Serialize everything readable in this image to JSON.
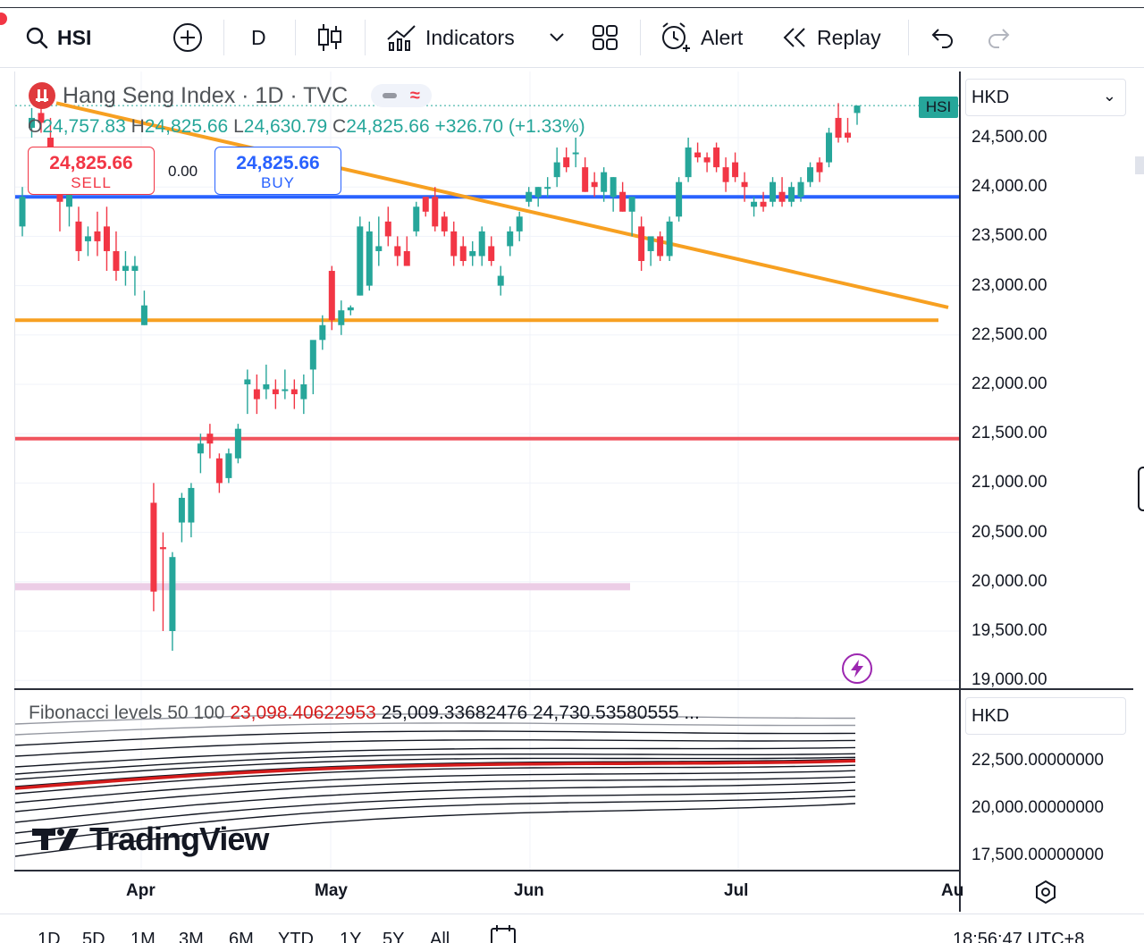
{
  "toolbar": {
    "symbol": "HSI",
    "interval": "D",
    "indicators_label": "Indicators",
    "alert_label": "Alert",
    "replay_label": "Replay",
    "icons": [
      "search-icon",
      "add-symbol-icon",
      "candles-icon",
      "indicators-icon",
      "chevron-down-icon",
      "layout-grid-icon",
      "alert-clock-icon",
      "replay-icon",
      "undo-icon",
      "redo-icon"
    ]
  },
  "legend": {
    "title": "Hang Seng Index · 1D · TVC",
    "o_label": "O",
    "o_value": "24,757.83",
    "h_label": "H",
    "h_value": "24,825.66",
    "l_label": "L",
    "l_value": "24,630.79",
    "c_label": "C",
    "c_value": "24,825.66",
    "change": "+326.70 (+1.33%)"
  },
  "trade": {
    "sell_price": "24,825.66",
    "sell_label": "SELL",
    "spread": "0.00",
    "buy_price": "24,825.66",
    "buy_label": "BUY"
  },
  "price_axis": {
    "currency": "HKD",
    "last_tag": "HSI",
    "ticks": [
      "24,500.00",
      "24,000.00",
      "23,500.00",
      "23,000.00",
      "22,500.00",
      "22,000.00",
      "21,500.00",
      "21,000.00",
      "20,500.00",
      "20,000.00",
      "19,500.00",
      "19,000.00"
    ]
  },
  "indicator": {
    "legend_name": "Fibonacci levels 50 100",
    "value_red": "23,098.40622953",
    "value_2": "25,009.33682476",
    "value_3": "24,730.53580555",
    "ellipsis": "...",
    "currency": "HKD",
    "ticks": [
      "22,500.00000000",
      "20,000.00000000",
      "17,500.00000000"
    ]
  },
  "time_axis": {
    "labels": [
      "Apr",
      "May",
      "Jun",
      "Jul",
      "Au"
    ]
  },
  "bottom": {
    "ranges": [
      "1D",
      "5D",
      "1M",
      "3M",
      "6M",
      "YTD",
      "1Y",
      "5Y",
      "All"
    ],
    "clock": "18:56:47 UTC+8"
  },
  "watermark": "TradingView",
  "colors": {
    "up": "#26a69a",
    "down": "#f23645",
    "trend_orange": "#f7a021",
    "support_blue": "#2962ff",
    "resistance_red": "#f0545e",
    "fib_red": "#d41b1b"
  },
  "chart_data": {
    "type": "candlestick",
    "currency": "HKD",
    "ylim": [
      19000,
      24900
    ],
    "candles": [
      {
        "o": 23600,
        "h": 24000,
        "l": 23500,
        "c": 23900
      },
      {
        "o": 24600,
        "h": 24800,
        "l": 24500,
        "c": 24700
      },
      {
        "o": 24750,
        "h": 24850,
        "l": 24550,
        "c": 24650
      },
      {
        "o": 24500,
        "h": 24700,
        "l": 24200,
        "c": 24400
      },
      {
        "o": 24100,
        "h": 24300,
        "l": 23550,
        "c": 23850
      },
      {
        "o": 23800,
        "h": 24100,
        "l": 23600,
        "c": 23950
      },
      {
        "o": 23650,
        "h": 23800,
        "l": 23250,
        "c": 23350
      },
      {
        "o": 23450,
        "h": 23600,
        "l": 23300,
        "c": 23500
      },
      {
        "o": 23550,
        "h": 23750,
        "l": 23300,
        "c": 23450
      },
      {
        "o": 23600,
        "h": 23800,
        "l": 23150,
        "c": 23350
      },
      {
        "o": 23350,
        "h": 23550,
        "l": 23050,
        "c": 23150
      },
      {
        "o": 23150,
        "h": 23350,
        "l": 23000,
        "c": 23200
      },
      {
        "o": 23150,
        "h": 23300,
        "l": 22900,
        "c": 23200
      },
      {
        "o": 22600,
        "h": 22950,
        "l": 22600,
        "c": 22800
      },
      {
        "o": 20800,
        "h": 21000,
        "l": 19700,
        "c": 19900
      },
      {
        "o": 20350,
        "h": 20500,
        "l": 19500,
        "c": 20330
      },
      {
        "o": 19500,
        "h": 20300,
        "l": 19300,
        "c": 20250
      },
      {
        "o": 20600,
        "h": 20900,
        "l": 20400,
        "c": 20850
      },
      {
        "o": 20600,
        "h": 21000,
        "l": 20450,
        "c": 20950
      },
      {
        "o": 21300,
        "h": 21500,
        "l": 21100,
        "c": 21400
      },
      {
        "o": 21500,
        "h": 21600,
        "l": 21250,
        "c": 21400
      },
      {
        "o": 21250,
        "h": 21300,
        "l": 20900,
        "c": 21000
      },
      {
        "o": 21050,
        "h": 21350,
        "l": 21000,
        "c": 21300
      },
      {
        "o": 21250,
        "h": 21600,
        "l": 21200,
        "c": 21550
      },
      {
        "o": 22000,
        "h": 22150,
        "l": 21700,
        "c": 22050
      },
      {
        "o": 21950,
        "h": 22100,
        "l": 21700,
        "c": 21850
      },
      {
        "o": 21950,
        "h": 22200,
        "l": 21850,
        "c": 22000
      },
      {
        "o": 21950,
        "h": 22050,
        "l": 21750,
        "c": 21900
      },
      {
        "o": 21950,
        "h": 22150,
        "l": 21850,
        "c": 21950
      },
      {
        "o": 21950,
        "h": 22050,
        "l": 21750,
        "c": 21900
      },
      {
        "o": 21850,
        "h": 22100,
        "l": 21700,
        "c": 22000
      },
      {
        "o": 22150,
        "h": 22400,
        "l": 21900,
        "c": 22450
      },
      {
        "o": 22450,
        "h": 22700,
        "l": 22350,
        "c": 22600
      },
      {
        "o": 23150,
        "h": 23200,
        "l": 22550,
        "c": 22650
      },
      {
        "o": 22600,
        "h": 22850,
        "l": 22500,
        "c": 22750
      },
      {
        "o": 22750,
        "h": 22800,
        "l": 22700,
        "c": 22780
      },
      {
        "o": 22900,
        "h": 23700,
        "l": 22900,
        "c": 23600
      },
      {
        "o": 23000,
        "h": 23650,
        "l": 22950,
        "c": 23550
      },
      {
        "o": 23350,
        "h": 23700,
        "l": 23200,
        "c": 23400
      },
      {
        "o": 23650,
        "h": 23800,
        "l": 23400,
        "c": 23500
      },
      {
        "o": 23400,
        "h": 23500,
        "l": 23200,
        "c": 23300
      },
      {
        "o": 23350,
        "h": 23500,
        "l": 23200,
        "c": 23200
      },
      {
        "o": 23550,
        "h": 23850,
        "l": 23500,
        "c": 23800
      },
      {
        "o": 23900,
        "h": 23900,
        "l": 23700,
        "c": 23750
      },
      {
        "o": 23900,
        "h": 24000,
        "l": 23550,
        "c": 23600
      },
      {
        "o": 23700,
        "h": 23750,
        "l": 23500,
        "c": 23550
      },
      {
        "o": 23550,
        "h": 23650,
        "l": 23200,
        "c": 23300
      },
      {
        "o": 23400,
        "h": 23500,
        "l": 23200,
        "c": 23250
      },
      {
        "o": 23300,
        "h": 23450,
        "l": 23200,
        "c": 23350
      },
      {
        "o": 23300,
        "h": 23600,
        "l": 23200,
        "c": 23550
      },
      {
        "o": 23400,
        "h": 23500,
        "l": 23200,
        "c": 23250
      },
      {
        "o": 23000,
        "h": 23200,
        "l": 22900,
        "c": 23100
      },
      {
        "o": 23400,
        "h": 23600,
        "l": 23300,
        "c": 23550
      },
      {
        "o": 23550,
        "h": 23750,
        "l": 23450,
        "c": 23700
      },
      {
        "o": 23850,
        "h": 24000,
        "l": 23800,
        "c": 23950
      },
      {
        "o": 23900,
        "h": 24000,
        "l": 23800,
        "c": 24000
      },
      {
        "o": 24000,
        "h": 24100,
        "l": 23900,
        "c": 24000
      },
      {
        "o": 24100,
        "h": 24400,
        "l": 24000,
        "c": 24250
      },
      {
        "o": 24300,
        "h": 24400,
        "l": 24150,
        "c": 24200
      },
      {
        "o": 24350,
        "h": 24500,
        "l": 24200,
        "c": 24350
      },
      {
        "o": 24200,
        "h": 24300,
        "l": 23950,
        "c": 23950
      },
      {
        "o": 24050,
        "h": 24150,
        "l": 23900,
        "c": 24000
      },
      {
        "o": 23950,
        "h": 24200,
        "l": 23850,
        "c": 24150
      },
      {
        "o": 23900,
        "h": 24100,
        "l": 23750,
        "c": 24100
      },
      {
        "o": 23950,
        "h": 24050,
        "l": 23750,
        "c": 23750
      },
      {
        "o": 23750,
        "h": 23900,
        "l": 23500,
        "c": 23900
      },
      {
        "o": 23600,
        "h": 23700,
        "l": 23150,
        "c": 23250
      },
      {
        "o": 23350,
        "h": 23450,
        "l": 23200,
        "c": 23500
      },
      {
        "o": 23500,
        "h": 23550,
        "l": 23250,
        "c": 23300
      },
      {
        "o": 23300,
        "h": 23700,
        "l": 23250,
        "c": 23650
      },
      {
        "o": 23700,
        "h": 24100,
        "l": 23650,
        "c": 24050
      },
      {
        "o": 24100,
        "h": 24500,
        "l": 24050,
        "c": 24400
      },
      {
        "o": 24350,
        "h": 24450,
        "l": 24250,
        "c": 24300
      },
      {
        "o": 24300,
        "h": 24350,
        "l": 24150,
        "c": 24250
      },
      {
        "o": 24400,
        "h": 24450,
        "l": 24150,
        "c": 24200
      },
      {
        "o": 24200,
        "h": 24300,
        "l": 23950,
        "c": 24050
      },
      {
        "o": 24250,
        "h": 24350,
        "l": 24050,
        "c": 24100
      },
      {
        "o": 24050,
        "h": 24150,
        "l": 23850,
        "c": 24000
      },
      {
        "o": 23800,
        "h": 23900,
        "l": 23700,
        "c": 23850
      },
      {
        "o": 23850,
        "h": 23950,
        "l": 23750,
        "c": 23800
      },
      {
        "o": 23850,
        "h": 24100,
        "l": 23800,
        "c": 24050
      },
      {
        "o": 23950,
        "h": 24100,
        "l": 23800,
        "c": 23850
      },
      {
        "o": 23850,
        "h": 24050,
        "l": 23800,
        "c": 24000
      },
      {
        "o": 23900,
        "h": 24100,
        "l": 23850,
        "c": 24050
      },
      {
        "o": 24050,
        "h": 24250,
        "l": 24000,
        "c": 24200
      },
      {
        "o": 24250,
        "h": 24300,
        "l": 24050,
        "c": 24150
      },
      {
        "o": 24250,
        "h": 24600,
        "l": 24200,
        "c": 24550
      },
      {
        "o": 24700,
        "h": 24850,
        "l": 24450,
        "c": 24500
      },
      {
        "o": 24550,
        "h": 24700,
        "l": 24450,
        "c": 24500
      },
      {
        "o": 24750,
        "h": 24825,
        "l": 24630,
        "c": 24825
      }
    ],
    "horizontal_lines": [
      {
        "price": 23900,
        "color": "#2962ff"
      },
      {
        "price": 22650,
        "color": "#f7a021"
      },
      {
        "price": 21450,
        "color": "#f0545e"
      },
      {
        "price": 19950,
        "color": "#e8c3e0"
      }
    ],
    "fib_pane": {
      "levels_axis": [
        "22,500",
        "20,000",
        "17,500"
      ]
    }
  }
}
